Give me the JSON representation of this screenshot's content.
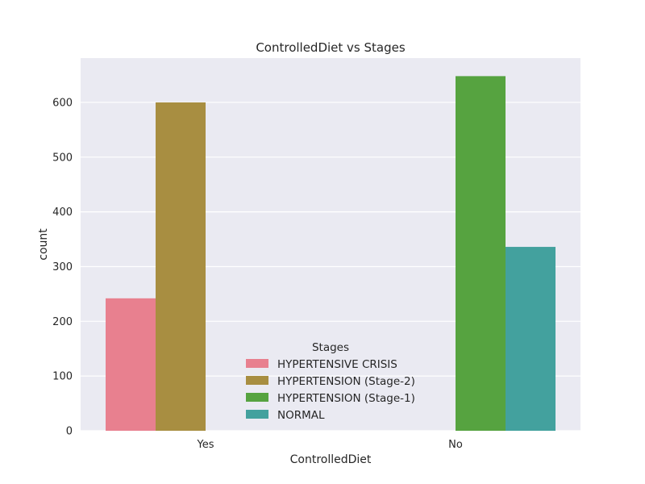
{
  "chart_data": {
    "type": "bar",
    "title": "ControlledDiet vs Stages",
    "xlabel": "ControlledDiet",
    "ylabel": "count",
    "categories": [
      "Yes",
      "No"
    ],
    "series": [
      {
        "name": "HYPERTENSIVE CRISIS",
        "values": [
          242,
          0
        ],
        "color": "#e8808f"
      },
      {
        "name": "HYPERTENSION (Stage-2)",
        "values": [
          600,
          0
        ],
        "color": "#a88e41"
      },
      {
        "name": "HYPERTENSION (Stage-1)",
        "values": [
          0,
          648
        ],
        "color": "#56a340"
      },
      {
        "name": "NORMAL",
        "values": [
          0,
          336
        ],
        "color": "#43a19e"
      }
    ],
    "yticks": [
      0,
      100,
      200,
      300,
      400,
      500,
      600
    ],
    "ylim": [
      0,
      681
    ],
    "grid": true,
    "plot_background": "#eaeaf2",
    "legend": {
      "title": "Stages",
      "placement": "lower-center"
    }
  }
}
